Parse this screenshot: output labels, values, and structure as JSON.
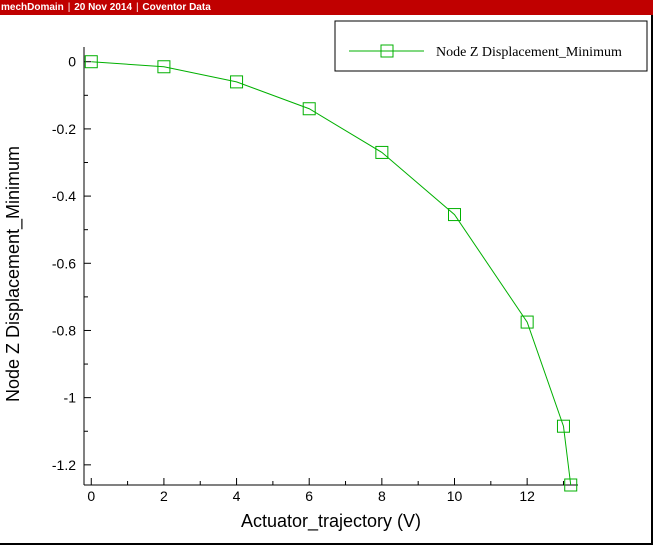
{
  "header": {
    "items": [
      "mechDomain",
      "20 Nov 2014",
      "Coventor Data"
    ]
  },
  "colors": {
    "header_bg": "#c00000",
    "series": "#00b000",
    "axis": "#000000"
  },
  "chart_data": {
    "type": "line",
    "title": "",
    "xlabel": "Actuator_trajectory (V)",
    "ylabel": "Node Z Displacement_Minimum",
    "xlim": [
      -0.2,
      13.4
    ],
    "ylim": [
      -1.26,
      0.02
    ],
    "xticks": [
      0,
      2,
      4,
      6,
      8,
      10,
      12
    ],
    "yticks": [
      0,
      -0.2,
      -0.4,
      -0.6,
      -0.8,
      -1,
      -1.2
    ],
    "grid": false,
    "legend": "top-right",
    "series": [
      {
        "name": "Node Z Displacement_Minimum",
        "marker": "square",
        "x": [
          0,
          2,
          4,
          6,
          8,
          10,
          12,
          13,
          13.2
        ],
        "y": [
          0,
          -0.015,
          -0.06,
          -0.14,
          -0.27,
          -0.455,
          -0.775,
          -1.085,
          -1.26
        ]
      }
    ]
  }
}
